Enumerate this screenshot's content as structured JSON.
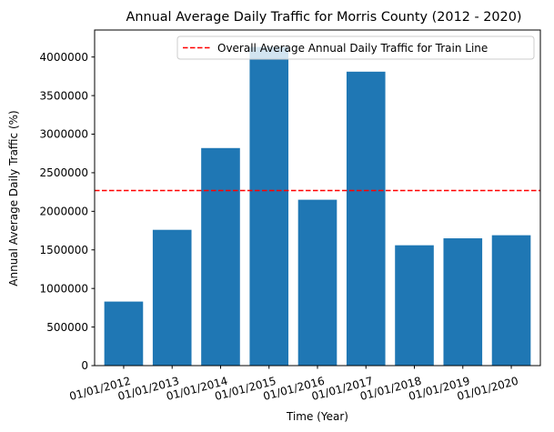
{
  "chart_data": {
    "type": "bar",
    "title": "Annual Average Daily Traffic for Morris County (2012 - 2020)",
    "xlabel": "Time (Year)",
    "ylabel": "Annual Average Daily Traffic (%)",
    "categories": [
      "01/01/2012",
      "01/01/2013",
      "01/01/2014",
      "01/01/2015",
      "01/01/2016",
      "01/01/2017",
      "01/01/2018",
      "01/01/2019",
      "01/01/2020"
    ],
    "values": [
      830000,
      1760000,
      2820000,
      4130000,
      2150000,
      3810000,
      1560000,
      1650000,
      1690000
    ],
    "ylim": [
      0,
      4350000
    ],
    "yticks": [
      0,
      500000,
      1000000,
      1500000,
      2000000,
      2500000,
      3000000,
      3500000,
      4000000
    ],
    "ytick_labels": [
      "0",
      "500000",
      "1000000",
      "1500000",
      "2000000",
      "2500000",
      "3000000",
      "3500000",
      "4000000"
    ],
    "bar_color": "#1f77b4",
    "reference_line": {
      "label": "Overall Average Annual Daily Traffic for Train Line",
      "value": 2270000,
      "color": "#ff0000",
      "style": "dashed"
    },
    "legend_position": "top-right",
    "grid": false,
    "xtick_rotation_deg": 15
  }
}
